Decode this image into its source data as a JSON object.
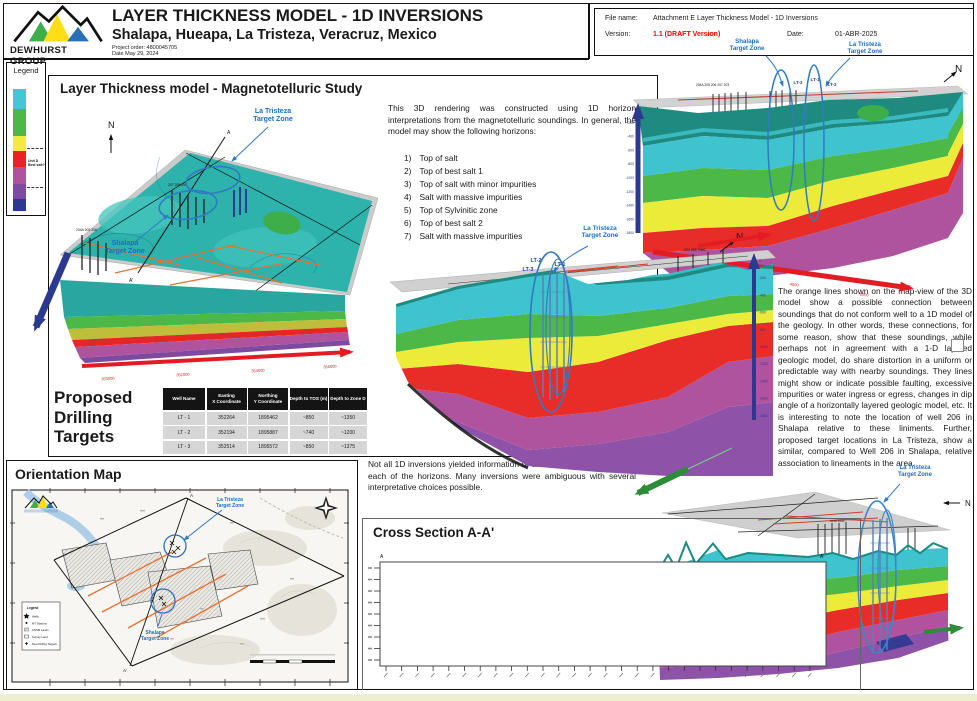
{
  "header": {
    "brand": "DEWHURST GROUP",
    "title": "LAYER  THICKNESS MODEL - 1D INVERSIONS",
    "subtitle": "Shalapa, Hueapa, La Tristeza, Veracruz, Mexico",
    "project_order": "Project order: 4800045705",
    "date": "Date May 29, 2024"
  },
  "file_info": {
    "file_name_label": "File name:",
    "file_name": "Attachment E Layer Thickness Model - 1D Inversions",
    "version_label": "Version:",
    "version": "1.1 (DRAFT Version)",
    "version_color": "#FF0000",
    "date_label": "Date:",
    "date": "01-ABR-2025"
  },
  "legend": {
    "title": "Legend",
    "colors": [
      "#45C7D3",
      "#4CB848",
      "#F0EB3E",
      "#EC2027",
      "#B0539E",
      "#7F4BA0",
      "#2B3990"
    ],
    "note": "Unit D\nBest salt?"
  },
  "study": {
    "title": "Layer Thickness model - Magnetotelluric Study",
    "intro": "This 3D rendering was constructed using 1D horizon interpretations from the magnetotelluric soundings. In general, the model may show the following horizons:",
    "horizons": [
      {
        "n": "1)",
        "t": "Top of salt"
      },
      {
        "n": "2)",
        "t": "Top of best salt 1"
      },
      {
        "n": "3)",
        "t": "Top of salt with minor impurities"
      },
      {
        "n": "4)",
        "t": "Salt with massive impurities"
      },
      {
        "n": "5)",
        "t": "Top of Sylvinitic zone"
      },
      {
        "n": "6)",
        "t": "Top of best salt 2"
      },
      {
        "n": "7)",
        "t": "Salt with massive impurities"
      }
    ],
    "note": "Not all 1D inversions yielded information or allowed an interpretation for each of the horizons. Many inversions were ambiguous with several interpretative choices possible.",
    "orange_lines_paragraph": "The orange lines shown on the map-view of the 3D model show a possible connection between soundings that do not conform well to a 1D model of the geology. In other words, these connections, for some reason, show that these soundings, while perhaps not in agreement with a 1-D layered geologic model, do share distortion in a uniform or predictable way with nearby soundings. They lines might show or indicate possible faulting, excessive impurities or water ingress or egress, changes in dip angle of a horizontally layered geologic model, etc. It is interesting to note the location of well 206 in Shalapa relative to these liniments. Further, proposed target locations in La Tristeza, show a similar, compared to Well 206 in Shalapa, relative association to lineaments in the area."
  },
  "targets": {
    "heading": "Proposed\nDrilling\nTargets",
    "columns": [
      "Well Name",
      "Easting\nX Coordinate",
      "Northing\nY Coordinate",
      "Depth to TOS (m)",
      "Depth to Zone D"
    ],
    "rows": [
      [
        "LT - 1",
        "352264",
        "1895462",
        "~850",
        "~1350"
      ],
      [
        "LT - 2",
        "352194",
        "1895887",
        "~740",
        "~1200"
      ],
      [
        "LT - 3",
        "352514",
        "1895572",
        "~850",
        "~1375"
      ]
    ]
  },
  "map": {
    "title": "Orientation Map",
    "la_tristeza": "La Tristeza\nTarget Zone",
    "shalapa": "Shalapa\nTarget Zone",
    "a": "A",
    "a_prime": "A'",
    "legend_title": "Legend",
    "legend_items": [
      "Wells",
      "MT Stations",
      "CNSM Lands",
      "Survey Land",
      "New Drilling Targets"
    ]
  },
  "cross_section": {
    "title": "Cross Section A-A'",
    "a": "A",
    "a_prime": "A'"
  },
  "models": {
    "left": {
      "north": "N",
      "a": "A",
      "a_prime": "A'",
      "la_tristeza": "La Tristeza\nTarget Zone",
      "shalapa": "Shalapa\nTarget Zone",
      "wells_a": "204A 205 206",
      "wells_b": "207  208  209",
      "x_ticks": [
        "350000",
        "352000",
        "354000",
        "356000"
      ]
    },
    "top_right": {
      "north": "N",
      "shalapa": "Shalapa\nTarget Zone",
      "la_tristeza": "La Tristeza\nTarget Zone",
      "lt2": "LT-2",
      "lt1": "LT-1",
      "lt3": "LT-3",
      "wells": "204A 205 206  207   203",
      "depth_ticks": [
        "0",
        "-200",
        "-400",
        "-600",
        "-800",
        "-1000",
        "-1200",
        "-1400",
        "-1600",
        "-1800"
      ],
      "dist_ticks": [
        "2000",
        "4000",
        "6000"
      ]
    },
    "center": {
      "north": "N",
      "la_tristeza": "La Tristeza\nTarget Zone",
      "lt2": "LT-2",
      "lt1": "LT-1",
      "lt3": "LT-3",
      "wells": "204  205  206C",
      "depth_ticks": [
        "0",
        "-200",
        "-400",
        "-600",
        "-800",
        "-1000",
        "-1200",
        "-1400",
        "-1600",
        "-1800"
      ]
    },
    "bottom_right": {
      "north": "N",
      "la_tristeza": "La Tristeza\nTarget Zone",
      "wells": "203A  204A"
    }
  },
  "colors": {
    "layer_cyan": "#3FC3CF",
    "layer_green": "#4CB848",
    "layer_yellow": "#EDEB3A",
    "layer_red": "#E82C28",
    "layer_magenta": "#B0539E",
    "layer_purple": "#8E52A8",
    "axis_blue": "#2B3990",
    "axis_red": "#E31B23",
    "axis_green": "#2E8B3A",
    "label_blue": "#1B6EC2",
    "orange_line": "#E87030"
  }
}
